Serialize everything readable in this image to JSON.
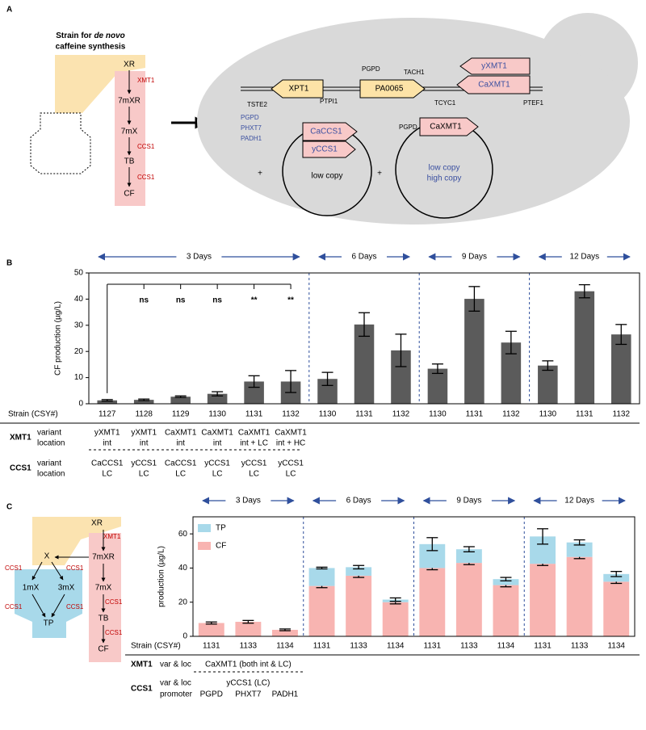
{
  "panel_a": {
    "label": "A",
    "title": [
      "Strain for",
      "de novo",
      "caffeine synthesis"
    ],
    "pathway": {
      "metabolites": [
        "XR",
        "7mXR",
        "7mX",
        "TB",
        "CF"
      ],
      "enzymes": [
        "XMT1",
        "CCS1",
        "CCS1"
      ]
    },
    "integrated_cassette": {
      "genes": [
        "XPT1",
        "PA0065",
        "yXMT1",
        "CaXMT1"
      ],
      "elements": [
        "PGPD",
        "TACH1",
        "TSTE2",
        "PTPI1",
        "TCYC1",
        "PTEF1"
      ]
    },
    "plasmid_1": {
      "promoters": [
        "PGPD",
        "PHXT7",
        "PADH1"
      ],
      "genes": [
        "CaCCS1",
        "yCCS1"
      ],
      "copy": "low copy"
    },
    "plasmid_2": {
      "promoter": "PGPD",
      "gene": "CaXMT1",
      "copy": [
        "low copy",
        "high copy"
      ]
    },
    "plus": "+"
  },
  "panel_c_pathway": {
    "metabolites": [
      "XR",
      "X",
      "7mXR",
      "1mX",
      "3mX",
      "7mX",
      "TP",
      "TB",
      "CF"
    ],
    "enzymes": [
      "XMT1",
      "CCS1",
      "CCS1",
      "CCS1",
      "CCS1",
      "CCS1",
      "CCS1"
    ]
  },
  "chart_data": [
    {
      "type": "bar",
      "panel_label": "B",
      "ylabel": "CF production (µg/L)",
      "x_label": "Strain (CSY#)",
      "color": "#5b5b5b",
      "ylim": [
        0,
        50
      ],
      "yticks": [
        0,
        10,
        20,
        30,
        40,
        50
      ],
      "groups": [
        {
          "label": "3 Days",
          "categories": [
            "1127",
            "1128",
            "1129",
            "1130",
            "1131",
            "1132"
          ],
          "values": [
            1.3,
            1.5,
            2.7,
            3.8,
            8.5,
            8.5
          ],
          "errors": [
            0.3,
            0.3,
            0.3,
            0.8,
            2.2,
            4.2
          ],
          "significance": [
            null,
            "ns",
            "ns",
            "ns",
            "**",
            "**"
          ]
        },
        {
          "label": "6 Days",
          "categories": [
            "1130",
            "1131",
            "1132"
          ],
          "values": [
            9.5,
            30.3,
            20.4
          ],
          "errors": [
            2.5,
            4.5,
            6.2
          ]
        },
        {
          "label": "9 Days",
          "categories": [
            "1130",
            "1131",
            "1132"
          ],
          "values": [
            13.4,
            40.1,
            23.4
          ],
          "errors": [
            1.8,
            4.7,
            4.3
          ]
        },
        {
          "label": "12 Days",
          "categories": [
            "1130",
            "1131",
            "1132"
          ],
          "values": [
            14.6,
            43.0,
            26.5
          ],
          "errors": [
            1.8,
            2.5,
            3.8
          ]
        }
      ],
      "table": {
        "xmt1": {
          "gene": "XMT1",
          "fields": [
            "variant",
            "location"
          ],
          "rows": [
            [
              "yXMT1",
              "yXMT1",
              "CaXMT1",
              "CaXMT1",
              "CaXMT1",
              "CaXMT1"
            ],
            [
              "int",
              "int",
              "int",
              "int",
              "int + LC",
              "int + HC"
            ]
          ]
        },
        "ccs1": {
          "gene": "CCS1",
          "fields": [
            "variant",
            "location"
          ],
          "rows": [
            [
              "CaCCS1",
              "yCCS1",
              "CaCCS1",
              "yCCS1",
              "yCCS1",
              "yCCS1"
            ],
            [
              "LC",
              "LC",
              "LC",
              "LC",
              "LC",
              "LC"
            ]
          ]
        }
      }
    },
    {
      "type": "stacked_bar",
      "panel_label": "C",
      "ylabel": "production (µg/L)",
      "x_label": "Strain (CSY#)",
      "ylim": [
        0,
        70
      ],
      "yticks": [
        0,
        20,
        40,
        60
      ],
      "series": [
        {
          "name": "CF",
          "color": "#f8b4b1"
        },
        {
          "name": "TP",
          "color": "#a8d9ea"
        }
      ],
      "groups": [
        {
          "label": "3 Days",
          "categories": [
            "1131",
            "1133",
            "1134"
          ],
          "series_values": [
            [
              7.8,
              8.5,
              3.8
            ],
            [
              null,
              null,
              null
            ]
          ],
          "series_errors": [
            [
              0.6,
              0.8,
              0.5
            ],
            [
              null,
              null,
              null
            ]
          ]
        },
        {
          "label": "6 Days",
          "categories": [
            "1131",
            "1133",
            "1134"
          ],
          "series_values": [
            [
              29.5,
              35.5,
              20.0
            ],
            [
              10.5,
              5.0,
              1.5
            ]
          ],
          "series_errors": [
            [
              1.0,
              1.0,
              1.0
            ],
            [
              0.5,
              1.0,
              1.0
            ]
          ]
        },
        {
          "label": "9 Days",
          "categories": [
            "1131",
            "1133",
            "1134"
          ],
          "series_values": [
            [
              40.0,
              43.0,
              30.0
            ],
            [
              14.0,
              8.0,
              3.5
            ]
          ],
          "series_errors": [
            [
              1.0,
              1.0,
              1.0
            ],
            [
              3.8,
              1.5,
              1.0
            ]
          ]
        },
        {
          "label": "12 Days",
          "categories": [
            "1131",
            "1133",
            "1134"
          ],
          "series_values": [
            [
              42.5,
              46.5,
              32.0
            ],
            [
              16.0,
              8.5,
              4.5
            ]
          ],
          "series_errors": [
            [
              1.0,
              1.0,
              1.0
            ],
            [
              4.5,
              1.5,
              1.5
            ]
          ]
        }
      ],
      "table": {
        "xmt1": {
          "gene": "XMT1",
          "fields": [
            "var & loc"
          ],
          "text": "CaXMT1 (both int & LC)"
        },
        "ccs1": {
          "gene": "CCS1",
          "fields": [
            "var & loc",
            "promoter"
          ],
          "text": "yCCS1 (LC)",
          "promoters": [
            "PGPD",
            "PHXT7",
            "PADH1"
          ]
        }
      }
    }
  ]
}
